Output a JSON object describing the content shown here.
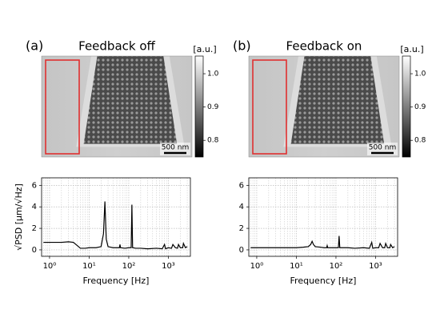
{
  "chart_data": [
    {
      "type": "image",
      "panel": "(a)",
      "title": "Feedback off",
      "colorbar_label": "[a.u.]",
      "clim": [
        0.75,
        1.053
      ],
      "cticks": [
        0.8,
        0.9,
        {
          "value": 1,
          "label": "1.0"
        }
      ],
      "scalebar": "500 nm",
      "highlight_color": "#e03030"
    },
    {
      "type": "image",
      "panel": "(b)",
      "title": "Feedback on",
      "colorbar_label": "[a.u.]",
      "clim": [
        0.75,
        1.053
      ],
      "cticks": [
        0.8,
        0.9,
        {
          "value": 1,
          "label": "1.0"
        }
      ],
      "scalebar": "500 nm",
      "highlight_color": "#e03030"
    },
    {
      "type": "line",
      "ylabel": "√PSD [μm/√Hz]",
      "xlabel": "Frequency [Hz]",
      "log_x": true,
      "grid": true,
      "color": "#000000",
      "x": [
        0.7,
        1,
        2,
        3,
        4,
        5,
        6,
        8,
        10,
        15,
        20,
        23,
        25,
        27,
        30,
        40,
        50,
        58,
        60,
        62,
        80,
        100,
        115,
        120,
        125,
        150,
        200,
        300,
        500,
        700,
        800,
        850,
        1000,
        1200,
        1300,
        1500,
        1700,
        1800,
        2000,
        2300,
        2400,
        2700,
        3000
      ],
      "values": [
        0.7,
        0.7,
        0.7,
        0.75,
        0.7,
        0.4,
        0.15,
        0.15,
        0.2,
        0.2,
        0.3,
        1.5,
        4.5,
        1.0,
        0.3,
        0.2,
        0.2,
        0.2,
        0.5,
        0.2,
        0.15,
        0.2,
        0.2,
        4.2,
        0.2,
        0.15,
        0.15,
        0.1,
        0.15,
        0.1,
        0.5,
        0.1,
        0.2,
        0.15,
        0.5,
        0.2,
        0.15,
        0.5,
        0.2,
        0.2,
        0.6,
        0.2,
        0.3
      ],
      "xlim": [
        0.63,
        3600
      ],
      "ylim": [
        -0.6,
        6.7
      ],
      "xticks": [
        {
          "value": 1,
          "label": "10⁰"
        },
        {
          "value": 10,
          "label": "10¹"
        },
        {
          "value": 100,
          "label": "10²"
        },
        {
          "value": 1000,
          "label": "10³"
        }
      ],
      "yticks": [
        0,
        2,
        4,
        6
      ]
    },
    {
      "type": "line",
      "xlabel": "Frequency [Hz]",
      "log_x": true,
      "grid": true,
      "color": "#000000",
      "x": [
        0.7,
        1,
        2,
        3,
        4,
        5,
        6,
        8,
        10,
        15,
        20,
        23,
        25,
        27,
        30,
        40,
        50,
        58,
        60,
        62,
        80,
        100,
        115,
        120,
        125,
        150,
        200,
        300,
        500,
        700,
        800,
        850,
        1000,
        1200,
        1300,
        1500,
        1700,
        1800,
        2000,
        2300,
        2400,
        2700,
        3000
      ],
      "values": [
        0.2,
        0.2,
        0.2,
        0.2,
        0.2,
        0.2,
        0.2,
        0.2,
        0.2,
        0.25,
        0.3,
        0.5,
        0.8,
        0.5,
        0.3,
        0.25,
        0.2,
        0.2,
        0.4,
        0.2,
        0.2,
        0.2,
        0.2,
        1.3,
        0.2,
        0.2,
        0.2,
        0.15,
        0.2,
        0.15,
        0.7,
        0.15,
        0.2,
        0.2,
        0.6,
        0.2,
        0.2,
        0.6,
        0.2,
        0.2,
        0.5,
        0.2,
        0.3
      ],
      "xlim": [
        0.63,
        3600
      ],
      "ylim": [
        -0.6,
        6.7
      ],
      "xticks": [
        {
          "value": 1,
          "label": "10⁰"
        },
        {
          "value": 10,
          "label": "10¹"
        },
        {
          "value": 100,
          "label": "10²"
        },
        {
          "value": 1000,
          "label": "10³"
        }
      ],
      "yticks": [
        0,
        2,
        4,
        6
      ]
    }
  ]
}
